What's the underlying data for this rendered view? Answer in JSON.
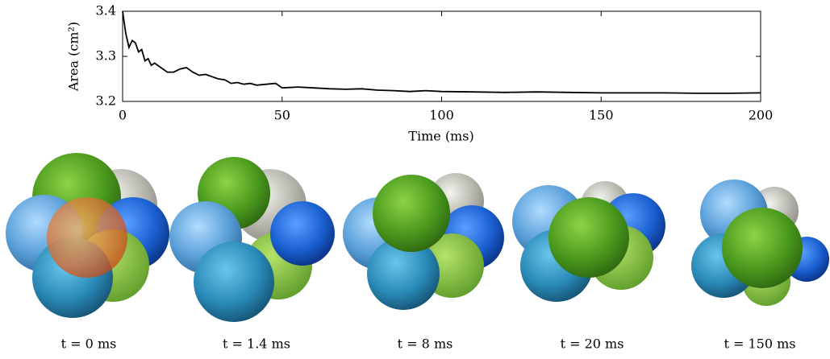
{
  "chart_data": {
    "type": "line",
    "xlabel": "Time (ms)",
    "ylabel": "Area (cm²)",
    "x": [
      0,
      1,
      2,
      3,
      4,
      5,
      6,
      7,
      8,
      9,
      10,
      12,
      14,
      16,
      18,
      20,
      22,
      24,
      26,
      28,
      30,
      32,
      34,
      36,
      38,
      40,
      42,
      45,
      48,
      50,
      55,
      60,
      65,
      70,
      75,
      80,
      85,
      90,
      95,
      100,
      110,
      120,
      130,
      140,
      150,
      160,
      170,
      180,
      190,
      200
    ],
    "y": [
      3.4,
      3.35,
      3.32,
      3.335,
      3.33,
      3.31,
      3.315,
      3.29,
      3.295,
      3.28,
      3.285,
      3.275,
      3.265,
      3.265,
      3.272,
      3.275,
      3.265,
      3.258,
      3.26,
      3.255,
      3.25,
      3.248,
      3.24,
      3.242,
      3.238,
      3.24,
      3.236,
      3.238,
      3.24,
      3.23,
      3.232,
      3.23,
      3.228,
      3.227,
      3.228,
      3.225,
      3.224,
      3.222,
      3.224,
      3.222,
      3.221,
      3.22,
      3.221,
      3.22,
      3.219,
      3.219,
      3.219,
      3.218,
      3.218,
      3.219
    ],
    "color": "#000000",
    "xlim": [
      0,
      200
    ],
    "ylim": [
      3.2,
      3.4
    ],
    "xticks": [
      0,
      50,
      100,
      150,
      200
    ],
    "yticks": [
      3.2,
      3.3,
      3.4
    ]
  },
  "panels": [
    {
      "caption": "t = 0 ms"
    },
    {
      "caption": "t = 1.4 ms"
    },
    {
      "caption": "t = 8 ms"
    },
    {
      "caption": "t = 20 ms"
    },
    {
      "caption": "t = 150 ms"
    }
  ]
}
